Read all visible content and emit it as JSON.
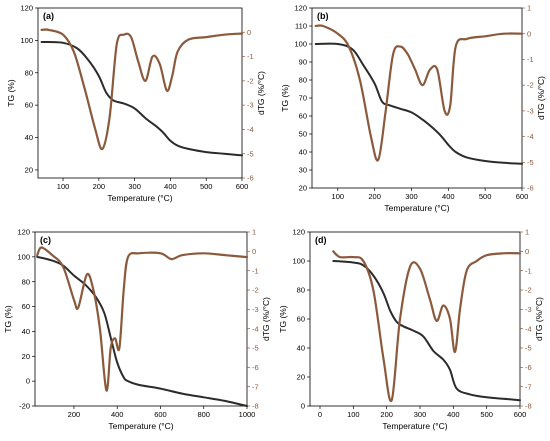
{
  "colors": {
    "tg": "#2b2b2b",
    "dtg": "#8b5a3c",
    "dtg_tick": "#8b5a3c",
    "dtg_min_marker": "#e8303a"
  },
  "chart_data": [
    {
      "type": "line",
      "panel": "(a)",
      "xlabel": "Temperature (°C)",
      "ylabel": "TG (%)",
      "y2label": "dTG (%/°C)",
      "xlim": [
        30,
        600
      ],
      "ylim": [
        15,
        120
      ],
      "y2lim": [
        -6,
        1
      ],
      "xticks": [
        100,
        200,
        300,
        400,
        500,
        600
      ],
      "yticks": [
        20,
        40,
        60,
        80,
        100,
        120
      ],
      "y2ticks": [
        0,
        -1,
        -2,
        -3,
        -4,
        -5,
        -6
      ],
      "series": [
        {
          "axis": "left",
          "x": [
            40,
            100,
            140,
            170,
            200,
            220,
            240,
            270,
            300,
            330,
            360,
            380,
            400,
            420,
            450,
            500,
            550,
            600
          ],
          "y": [
            99,
            98.5,
            95,
            88,
            78,
            68,
            63,
            61,
            58,
            52,
            47,
            43,
            38,
            35,
            33,
            31,
            30,
            29
          ]
        },
        {
          "axis": "right",
          "x": [
            40,
            60,
            100,
            130,
            160,
            190,
            210,
            230,
            250,
            270,
            290,
            310,
            330,
            350,
            370,
            390,
            405,
            420,
            450,
            500,
            550,
            600
          ],
          "y": [
            0.1,
            0.1,
            -0.1,
            -0.8,
            -2.3,
            -4.0,
            -4.8,
            -3.5,
            -0.5,
            -0.1,
            -0.2,
            -1.2,
            -2.0,
            -1.0,
            -1.3,
            -2.4,
            -1.8,
            -0.8,
            -0.3,
            -0.2,
            -0.1,
            -0.05
          ]
        }
      ]
    },
    {
      "type": "line",
      "panel": "(b)",
      "xlabel": "Temperature (°C)",
      "ylabel": "TG (%)",
      "y2label": "dTG (%/°C)",
      "xlim": [
        30,
        600
      ],
      "ylim": [
        20,
        120
      ],
      "y2lim": [
        -6,
        1
      ],
      "xticks": [
        100,
        200,
        300,
        400,
        500,
        600
      ],
      "yticks": [
        20,
        30,
        40,
        50,
        60,
        70,
        80,
        90,
        100,
        110,
        120
      ],
      "y2ticks": [
        1,
        0,
        -1,
        -2,
        -3,
        -4,
        -5,
        -6
      ],
      "series": [
        {
          "axis": "left",
          "x": [
            40,
            100,
            140,
            170,
            200,
            220,
            240,
            270,
            300,
            330,
            360,
            380,
            400,
            420,
            450,
            500,
            550,
            600
          ],
          "y": [
            100,
            100,
            97,
            88,
            78,
            68,
            66,
            64,
            62,
            58,
            53,
            49,
            44,
            40,
            37,
            35,
            34,
            33.5
          ]
        },
        {
          "axis": "right",
          "x": [
            40,
            60,
            100,
            130,
            160,
            190,
            210,
            230,
            250,
            270,
            290,
            310,
            330,
            350,
            370,
            390,
            405,
            420,
            450,
            500,
            550,
            600
          ],
          "y": [
            0.3,
            0.3,
            0.0,
            -0.5,
            -1.8,
            -4.0,
            -4.9,
            -3.0,
            -0.8,
            -0.5,
            -0.8,
            -1.4,
            -2.0,
            -1.4,
            -1.4,
            -3.0,
            -2.8,
            -0.5,
            -0.2,
            -0.1,
            0.0,
            0.0
          ]
        }
      ]
    },
    {
      "type": "line",
      "panel": "(c)",
      "xlabel": "Temperature (°C)",
      "ylabel": "TG (%)",
      "y2label": "dTG (%/°C)",
      "xlim": [
        20,
        1000
      ],
      "ylim": [
        -20,
        120
      ],
      "y2lim": [
        -8,
        1
      ],
      "xticks": [
        200,
        400,
        600,
        800,
        1000
      ],
      "yticks": [
        -20,
        0,
        20,
        40,
        60,
        80,
        100,
        120
      ],
      "y2ticks": [
        1,
        0,
        -1,
        -2,
        -3,
        -4,
        -5,
        -6,
        -7,
        -8
      ],
      "series": [
        {
          "axis": "left",
          "x": [
            30,
            100,
            150,
            200,
            250,
            300,
            340,
            370,
            400,
            430,
            450,
            500,
            600,
            700,
            800,
            900,
            1000
          ],
          "y": [
            100,
            97,
            93,
            85,
            78,
            68,
            55,
            35,
            15,
            3,
            0,
            -3,
            -6,
            -10,
            -13,
            -16,
            -20
          ]
        },
        {
          "axis": "right",
          "x": [
            30,
            50,
            100,
            150,
            200,
            220,
            260,
            290,
            320,
            350,
            370,
            390,
            410,
            430,
            450,
            500,
            600,
            650,
            700,
            800,
            900,
            1000
          ],
          "y": [
            -0.2,
            0.2,
            -0.2,
            -0.8,
            -2.5,
            -2.9,
            -1.2,
            -2.0,
            -4.0,
            -7.2,
            -5.0,
            -4.5,
            -5.0,
            -2.0,
            -0.3,
            -0.1,
            -0.1,
            -0.4,
            -0.2,
            -0.1,
            -0.2,
            -0.3
          ]
        }
      ]
    },
    {
      "type": "line",
      "panel": "(d)",
      "xlabel": "Temperature (°C)",
      "ylabel": "TG (%)",
      "y2label": "dTG (%/°C)",
      "xlim": [
        -30,
        600
      ],
      "ylim": [
        0,
        120
      ],
      "y2lim": [
        -8,
        1
      ],
      "xticks": [
        0,
        100,
        200,
        300,
        400,
        500,
        600
      ],
      "yticks": [
        0,
        20,
        40,
        60,
        80,
        100,
        120
      ],
      "y2ticks": [
        1,
        0,
        -1,
        -2,
        -3,
        -4,
        -5,
        -6,
        -7,
        -8
      ],
      "series": [
        {
          "axis": "left",
          "x": [
            40,
            100,
            130,
            160,
            190,
            210,
            230,
            250,
            280,
            310,
            340,
            370,
            390,
            410,
            450,
            500,
            550,
            600
          ],
          "y": [
            100,
            99,
            97,
            90,
            78,
            66,
            58,
            55,
            52,
            48,
            38,
            32,
            25,
            12,
            8,
            6,
            5,
            4
          ]
        },
        {
          "axis": "right",
          "x": [
            40,
            60,
            100,
            130,
            160,
            190,
            215,
            240,
            270,
            300,
            330,
            350,
            370,
            390,
            405,
            420,
            440,
            470,
            500,
            550,
            600
          ],
          "y": [
            0,
            -0.3,
            -0.3,
            -0.5,
            -2.0,
            -5.5,
            -7.7,
            -3.5,
            -0.8,
            -0.9,
            -2.5,
            -3.6,
            -2.8,
            -3.5,
            -5.2,
            -3.0,
            -1.0,
            -0.5,
            -0.2,
            -0.1,
            -0.1
          ]
        }
      ]
    }
  ]
}
